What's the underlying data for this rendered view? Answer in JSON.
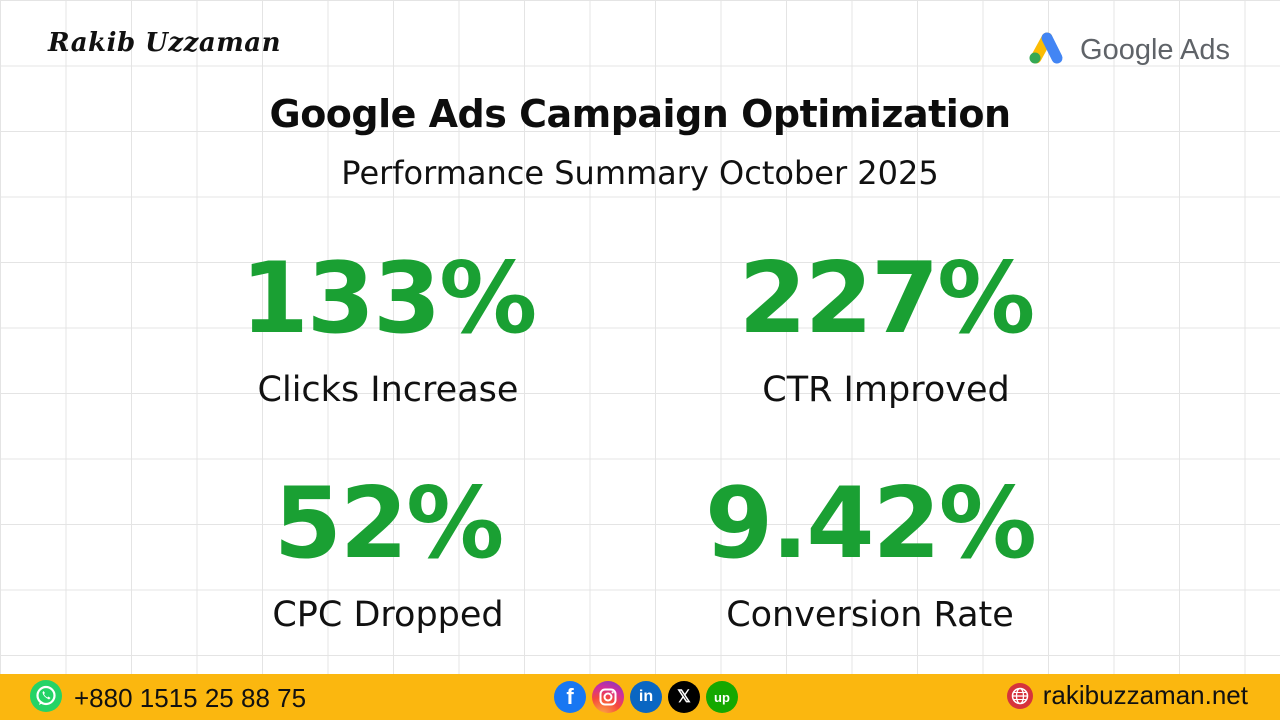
{
  "header": {
    "brand_name": "Rakib Uzzaman",
    "partner_logo_text": "Google Ads",
    "partner_logo_icon": "google-ads-logo-icon"
  },
  "title": "Google Ads Campaign Optimization",
  "subtitle": "Performance Summary October 2025",
  "stats": [
    {
      "value": "133%",
      "label": "Clicks Increase"
    },
    {
      "value": "227%",
      "label": "CTR Improved"
    },
    {
      "value": "52%",
      "label": "CPC Dropped"
    },
    {
      "value": "9.42%",
      "label": "Conversion Rate"
    }
  ],
  "colors": {
    "accent_green": "#1aa033",
    "footer_yellow": "#fbb70f"
  },
  "footer": {
    "phone": "+880 1515 25 88 75",
    "phone_icon": "whatsapp-icon",
    "social_icons": [
      "facebook-icon",
      "instagram-icon",
      "linkedin-icon",
      "x-icon",
      "upwork-icon"
    ],
    "website": "rakibuzzaman.net",
    "website_icon": "globe-icon"
  }
}
